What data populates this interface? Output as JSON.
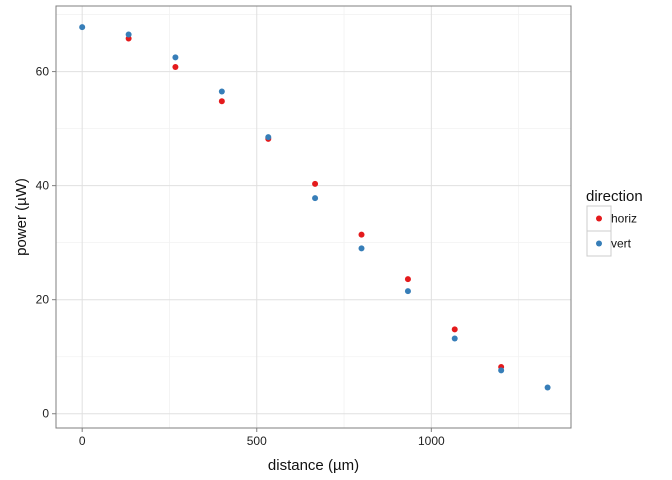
{
  "chart_data": {
    "type": "scatter",
    "xlabel": "distance (µm)",
    "ylabel": "power (µW)",
    "xlim": [
      -75,
      1400
    ],
    "ylim": [
      -2.5,
      71.5
    ],
    "xticks": [
      0,
      500,
      1000
    ],
    "yticks": [
      0,
      20,
      40,
      60
    ],
    "grid": true,
    "legend": {
      "title": "direction",
      "position": "right"
    },
    "series": [
      {
        "name": "horiz",
        "color": "#e41a1c",
        "x": [
          133,
          267,
          400,
          533,
          667,
          800,
          933,
          1067,
          1200
        ],
        "y": [
          65.8,
          60.8,
          54.8,
          48.2,
          40.3,
          31.4,
          23.6,
          14.8,
          8.2
        ]
      },
      {
        "name": "vert",
        "color": "#377eb8",
        "x": [
          0,
          133,
          267,
          400,
          533,
          667,
          800,
          933,
          1067,
          1200,
          1333
        ],
        "y": [
          67.8,
          66.5,
          62.5,
          56.5,
          48.5,
          37.8,
          29.0,
          21.5,
          13.2,
          7.6,
          4.6
        ]
      }
    ]
  }
}
